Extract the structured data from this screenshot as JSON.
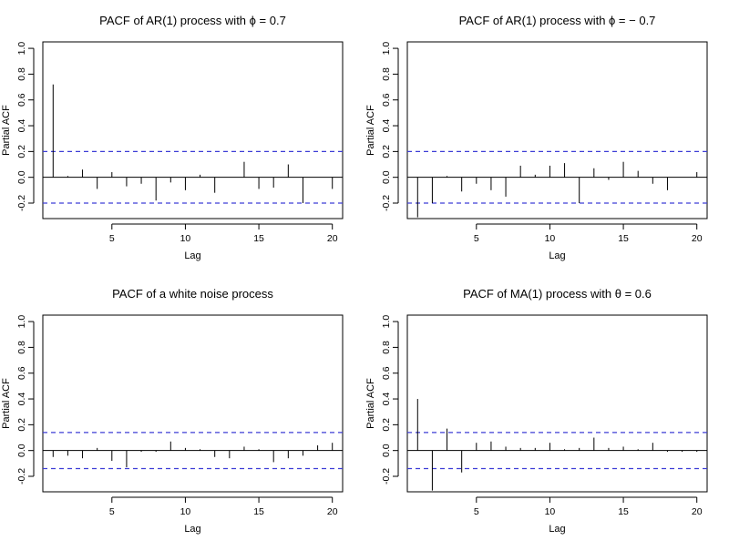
{
  "figure": {
    "ci_color": "#3d3dd6",
    "line_color": "#000000"
  },
  "chart_data": [
    {
      "type": "bar",
      "title": "PACF of AR(1) process with ϕ = 0.7",
      "xlabel": "Lag",
      "ylabel": "Partial ACF",
      "xlim": [
        0.3,
        20.7
      ],
      "ylim": [
        -0.32,
        1.05
      ],
      "xticks": [
        5,
        10,
        15,
        20
      ],
      "yticks": [
        -0.2,
        0.0,
        0.2,
        0.4,
        0.6,
        0.8,
        1.0
      ],
      "ytick_labels": [
        "-0.2",
        "0.0",
        "0.2",
        "0.4",
        "0.6",
        "0.8",
        "1.0"
      ],
      "ci": 0.2,
      "x": [
        1,
        2,
        3,
        4,
        5,
        6,
        7,
        8,
        9,
        10,
        11,
        12,
        13,
        14,
        15,
        16,
        17,
        18,
        19,
        20
      ],
      "values": [
        0.72,
        0.01,
        0.06,
        -0.09,
        0.04,
        -0.07,
        -0.05,
        -0.18,
        -0.04,
        -0.1,
        0.02,
        -0.12,
        0.0,
        0.12,
        -0.09,
        -0.08,
        0.1,
        -0.2,
        0.0,
        -0.09
      ]
    },
    {
      "type": "bar",
      "title": "PACF of AR(1) process with ϕ = − 0.7",
      "xlabel": "Lag",
      "ylabel": "Partial ACF",
      "xlim": [
        0.3,
        20.7
      ],
      "ylim": [
        -0.32,
        1.05
      ],
      "xticks": [
        5,
        10,
        15,
        20
      ],
      "yticks": [
        -0.2,
        0.0,
        0.2,
        0.4,
        0.6,
        0.8,
        1.0
      ],
      "ytick_labels": [
        "-0.2",
        "0.0",
        "0.2",
        "0.4",
        "0.6",
        "0.8",
        "1.0"
      ],
      "ci": 0.2,
      "x": [
        1,
        2,
        3,
        4,
        5,
        6,
        7,
        8,
        9,
        10,
        11,
        12,
        13,
        14,
        15,
        16,
        17,
        18,
        19,
        20
      ],
      "values": [
        -0.31,
        -0.2,
        0.01,
        -0.11,
        -0.05,
        -0.1,
        -0.15,
        0.09,
        0.02,
        0.09,
        0.11,
        -0.2,
        0.07,
        -0.02,
        0.12,
        0.05,
        -0.05,
        -0.1,
        0.0,
        0.04
      ]
    },
    {
      "type": "bar",
      "title": "PACF of a white noise process",
      "xlabel": "Lag",
      "ylabel": "Partial ACF",
      "xlim": [
        0.3,
        20.7
      ],
      "ylim": [
        -0.32,
        1.05
      ],
      "xticks": [
        5,
        10,
        15,
        20
      ],
      "yticks": [
        -0.2,
        0.0,
        0.2,
        0.4,
        0.6,
        0.8,
        1.0
      ],
      "ytick_labels": [
        "-0.2",
        "0.0",
        "0.2",
        "0.4",
        "0.6",
        "0.8",
        "1.0"
      ],
      "ci": 0.14,
      "x": [
        1,
        2,
        3,
        4,
        5,
        6,
        7,
        8,
        9,
        10,
        11,
        12,
        13,
        14,
        15,
        16,
        17,
        18,
        19,
        20
      ],
      "values": [
        -0.05,
        -0.04,
        -0.06,
        0.02,
        -0.08,
        -0.13,
        -0.01,
        -0.01,
        0.07,
        0.02,
        0.01,
        -0.05,
        -0.06,
        0.03,
        0.01,
        -0.09,
        -0.06,
        -0.04,
        0.04,
        0.06
      ]
    },
    {
      "type": "bar",
      "title": "PACF of MA(1) process with θ = 0.6",
      "xlabel": "Lag",
      "ylabel": "Partial ACF",
      "xlim": [
        0.3,
        20.7
      ],
      "ylim": [
        -0.32,
        1.05
      ],
      "xticks": [
        5,
        10,
        15,
        20
      ],
      "yticks": [
        -0.2,
        0.0,
        0.2,
        0.4,
        0.6,
        0.8,
        1.0
      ],
      "ytick_labels": [
        "-0.2",
        "0.0",
        "0.2",
        "0.4",
        "0.6",
        "0.8",
        "1.0"
      ],
      "ci": 0.14,
      "x": [
        1,
        2,
        3,
        4,
        5,
        6,
        7,
        8,
        9,
        10,
        11,
        12,
        13,
        14,
        15,
        16,
        17,
        18,
        19,
        20
      ],
      "values": [
        0.4,
        -0.31,
        0.17,
        -0.17,
        0.06,
        0.07,
        0.03,
        0.02,
        0.02,
        0.06,
        0.01,
        0.02,
        0.1,
        0.02,
        0.03,
        0.01,
        0.06,
        -0.01,
        -0.01,
        -0.01
      ]
    }
  ]
}
